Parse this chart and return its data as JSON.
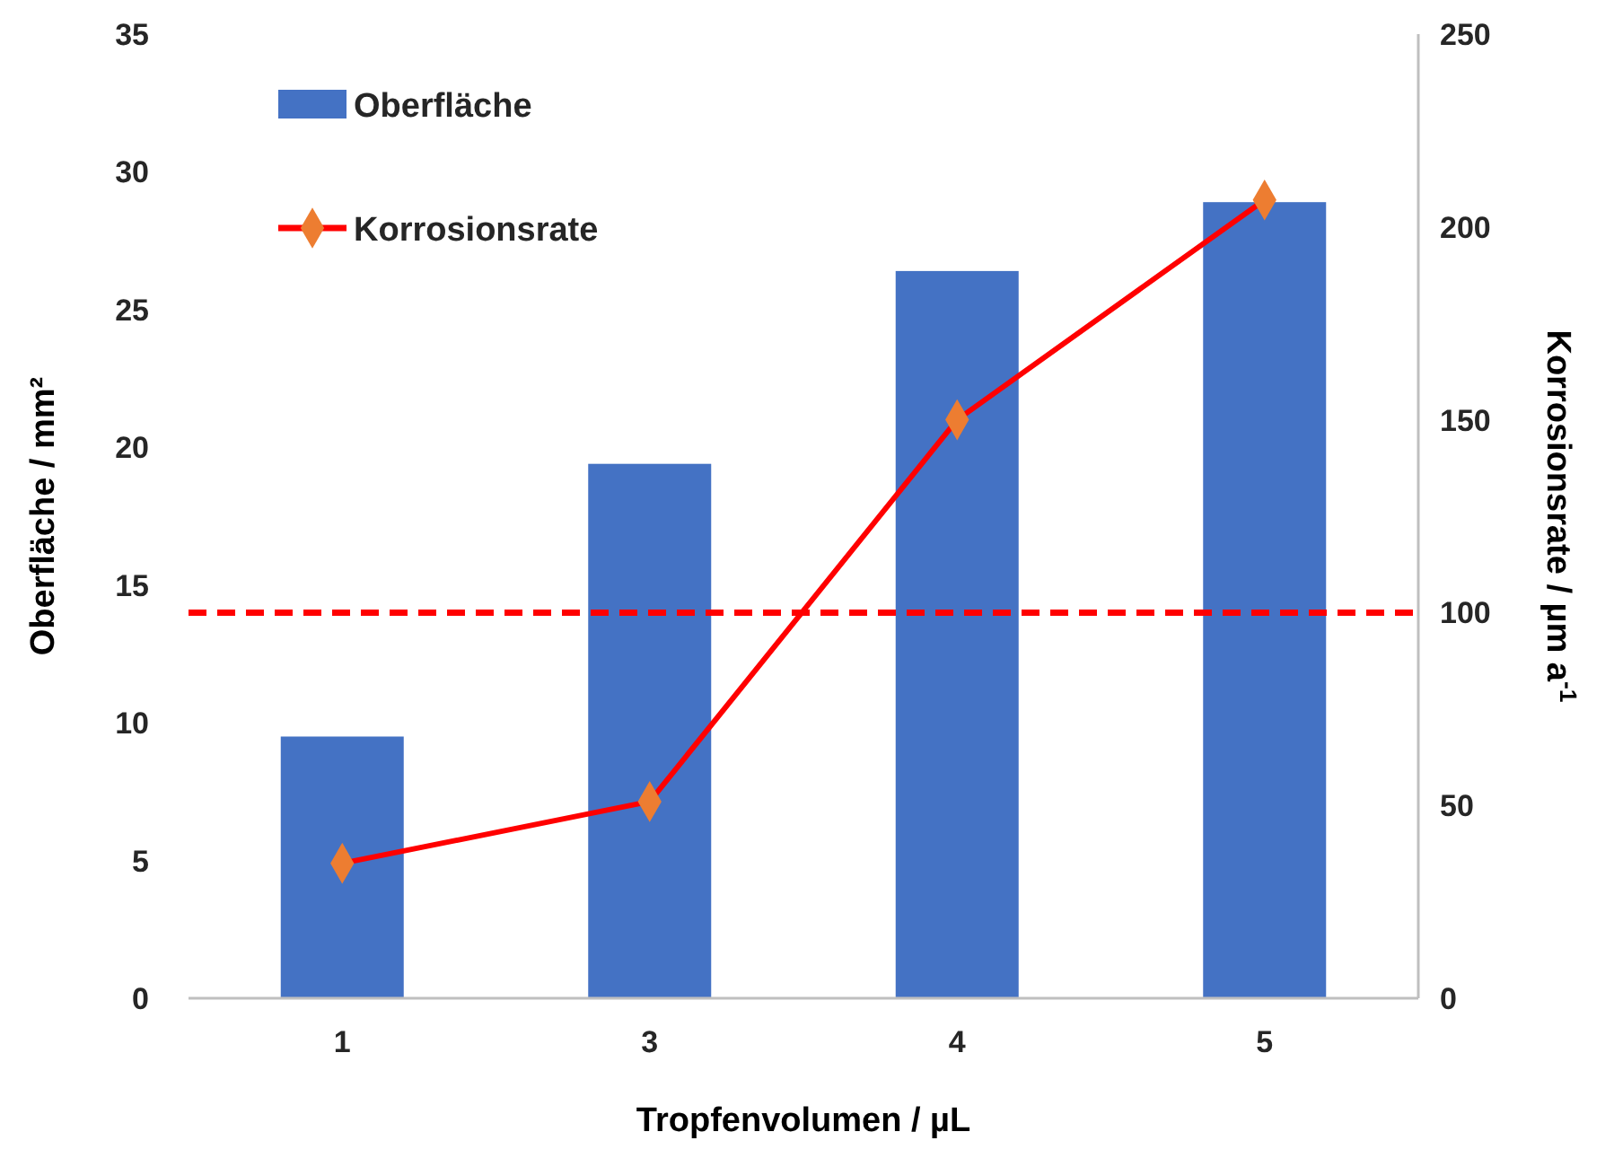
{
  "chart_data": {
    "type": "bar",
    "categories": [
      "1",
      "3",
      "4",
      "5"
    ],
    "xlabel": "Tropfenvolumen / µL",
    "ylabel": "Oberfläche / mm²",
    "y2label": "Korrosionsrate / µm a$^{-1}$",
    "ylim": [
      0,
      35
    ],
    "yticks": [
      0,
      5,
      10,
      15,
      20,
      25,
      30,
      35
    ],
    "y2lim": [
      0,
      250
    ],
    "y2ticks": [
      0,
      50,
      100,
      150,
      200,
      250
    ],
    "series": [
      {
        "name": "Oberfläche",
        "color": "#4472c4",
        "values": [
          9.5,
          19.4,
          26.4,
          28.9
        ]
      },
      {
        "name": "Korrosionsrate",
        "type": "line",
        "axis": "y2",
        "color": "#ff0000",
        "marker": "diamond",
        "values": [
          35,
          51,
          150,
          207
        ]
      }
    ],
    "ref_lines": [
      {
        "axis": "y2",
        "value": 100,
        "color": "#ff0000",
        "line_style": "dashed"
      }
    ],
    "legend": "top left",
    "grid": false
  }
}
